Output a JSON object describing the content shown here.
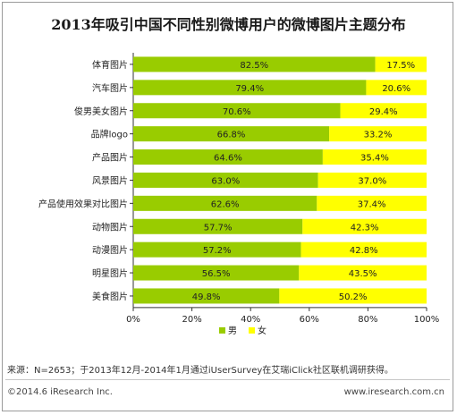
{
  "title": "2013年吸引中国不同性别微博用户的微博图片主题分布",
  "source": "来源：N=2653；于2013年12月-2014年1月通过iUserSurvey在艾瑞iClick社区联机调研获得。",
  "footer": {
    "copyright": "©2014.6 iResearch Inc.",
    "url": "www.iresearch.com.cn"
  },
  "colors": {
    "male": "#99cc00",
    "female": "#ffff00"
  },
  "chart_data": {
    "type": "bar",
    "orientation": "horizontal",
    "stacked": true,
    "percent": true,
    "categories": [
      "体育图片",
      "汽车图片",
      "俊男美女图片",
      "品牌logo",
      "产品图片",
      "风景图片",
      "产品使用效果对比图片",
      "动物图片",
      "动漫图片",
      "明星图片",
      "美食图片"
    ],
    "series": [
      {
        "name": "男",
        "values": [
          82.5,
          79.4,
          70.6,
          66.8,
          64.6,
          63.0,
          62.6,
          57.7,
          57.2,
          56.5,
          49.8
        ]
      },
      {
        "name": "女",
        "values": [
          17.5,
          20.6,
          29.4,
          33.2,
          35.4,
          37.0,
          37.4,
          42.3,
          42.8,
          43.5,
          50.2
        ]
      }
    ],
    "value_labels": [
      [
        "82.5%",
        "79.4%",
        "70.6%",
        "66.8%",
        "64.6%",
        "63.0%",
        "62.6%",
        "57.7%",
        "57.2%",
        "56.5%",
        "49.8%"
      ],
      [
        "17.5%",
        "20.6%",
        "29.4%",
        "33.2%",
        "35.4%",
        "37.0%",
        "37.4%",
        "42.3%",
        "42.8%",
        "43.5%",
        "50.2%"
      ]
    ],
    "xlim": [
      0,
      100
    ],
    "xticks": [
      "0%",
      "20%",
      "40%",
      "60%",
      "80%",
      "100%"
    ],
    "grid": false,
    "legend_position": "bottom"
  }
}
